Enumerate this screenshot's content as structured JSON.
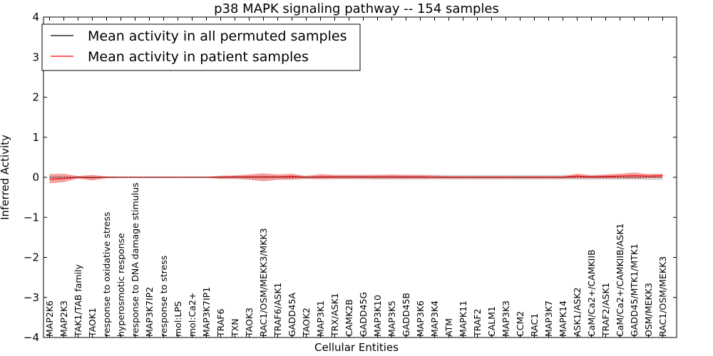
{
  "chart_data": {
    "type": "line",
    "title": "p38 MAPK signaling pathway -- 154 samples",
    "xlabel": "Cellular Entities",
    "ylabel": "Inferred Activity",
    "ylim": [
      -4,
      4
    ],
    "yticks": [
      -4,
      -3,
      -2,
      -1,
      0,
      1,
      2,
      3,
      4
    ],
    "ytick_labels": [
      "−4",
      "−3",
      "−2",
      "−1",
      "0",
      "1",
      "2",
      "3",
      "4"
    ],
    "legend_position": "top-left",
    "grid": false,
    "categories": [
      "MAP2K6",
      "MAP2K3",
      "TAK1/TAB family",
      "TAOK1",
      "response to oxidative stress",
      "hyperosmotic response",
      "response to DNA damage stimulus",
      "MAP3K7IP2",
      "response to stress",
      "mol:LPS",
      "mol:Ca2+",
      "MAP3K7IP1",
      "TRAF6",
      "TXN",
      "TAOK3",
      "RAC1/OSM/MEKK3/MKK3",
      "TRAF6/ASK1",
      "GADD45A",
      "TAOK2",
      "MAP3K1",
      "TRX/ASK1",
      "CAMK2B",
      "GADD45G",
      "MAP3K10",
      "MAP3K5",
      "GADD45B",
      "MAP3K6",
      "MAP3K4",
      "ATM",
      "MAPK11",
      "TRAF2",
      "CALM1",
      "MAP3K3",
      "CCM2",
      "RAC1",
      "MAP3K7",
      "MAPK14",
      "ASK1/ASK2",
      "CaM/Ca2+/CAMKIIB",
      "TRAF2/ASK1",
      "CaM/Ca2+/CAMKIIB/ASK1",
      "GADD45/MTK1/MTK1",
      "OSM/MEKK3",
      "RAC1/OSM/MEKK3"
    ],
    "series": [
      {
        "name": "Mean activity in all permuted samples",
        "color": "#000000",
        "values": [
          0.0,
          0.0,
          0.0,
          0.0,
          0.0,
          0.0,
          0.0,
          0.0,
          0.0,
          0.0,
          0.0,
          0.0,
          0.0,
          0.0,
          0.0,
          0.0,
          0.0,
          0.0,
          0.0,
          0.0,
          0.0,
          0.0,
          0.0,
          0.0,
          0.0,
          0.0,
          0.0,
          0.0,
          0.0,
          0.0,
          0.0,
          0.0,
          0.0,
          0.0,
          0.0,
          0.0,
          0.0,
          0.0,
          0.0,
          0.0,
          0.0,
          0.0,
          0.0,
          0.0
        ],
        "band_lower": [
          -0.02,
          -0.03,
          -0.03,
          -0.03,
          -0.02,
          -0.02,
          -0.02,
          -0.02,
          -0.02,
          -0.02,
          -0.02,
          -0.02,
          -0.03,
          -0.03,
          -0.04,
          -0.05,
          -0.05,
          -0.05,
          -0.05,
          -0.05,
          -0.05,
          -0.05,
          -0.05,
          -0.06,
          -0.06,
          -0.06,
          -0.06,
          -0.06,
          -0.06,
          -0.06,
          -0.06,
          -0.06,
          -0.06,
          -0.06,
          -0.06,
          -0.06,
          -0.06,
          -0.06,
          -0.06,
          -0.06,
          -0.06,
          -0.06,
          -0.07,
          -0.07
        ],
        "band_upper": [
          0.02,
          0.03,
          0.03,
          0.03,
          0.02,
          0.02,
          0.02,
          0.02,
          0.02,
          0.02,
          0.02,
          0.02,
          0.03,
          0.03,
          0.04,
          0.05,
          0.05,
          0.05,
          0.05,
          0.05,
          0.05,
          0.05,
          0.05,
          0.06,
          0.06,
          0.06,
          0.06,
          0.06,
          0.06,
          0.06,
          0.06,
          0.06,
          0.06,
          0.06,
          0.06,
          0.06,
          0.06,
          0.06,
          0.06,
          0.06,
          0.06,
          0.06,
          0.07,
          0.07
        ],
        "band_color": "#cccccc"
      },
      {
        "name": "Mean activity in patient samples",
        "color": "#ff0000",
        "values": [
          -0.05,
          -0.03,
          0.0,
          -0.01,
          0.0,
          0.0,
          0.0,
          0.0,
          0.0,
          0.0,
          0.0,
          0.0,
          0.0,
          0.01,
          0.01,
          0.01,
          0.01,
          0.02,
          0.0,
          0.01,
          0.01,
          0.01,
          0.01,
          0.01,
          0.01,
          0.01,
          0.01,
          0.0,
          0.0,
          0.0,
          0.0,
          0.0,
          0.0,
          0.0,
          0.0,
          0.0,
          0.0,
          0.03,
          0.01,
          0.02,
          0.03,
          0.04,
          0.03,
          0.04
        ],
        "band_lower": [
          -0.15,
          -0.12,
          -0.03,
          -0.08,
          -0.02,
          -0.01,
          -0.01,
          -0.01,
          -0.01,
          -0.01,
          -0.01,
          -0.01,
          -0.04,
          -0.04,
          -0.06,
          -0.1,
          -0.06,
          -0.06,
          -0.03,
          -0.05,
          -0.04,
          -0.04,
          -0.04,
          -0.04,
          -0.04,
          -0.04,
          -0.04,
          -0.03,
          -0.03,
          -0.03,
          -0.03,
          -0.03,
          -0.03,
          -0.03,
          -0.03,
          -0.03,
          -0.03,
          -0.03,
          -0.03,
          -0.03,
          -0.03,
          -0.04,
          -0.02,
          -0.02
        ],
        "band_upper": [
          0.08,
          0.09,
          0.03,
          0.06,
          0.02,
          0.01,
          0.01,
          0.01,
          0.01,
          0.01,
          0.01,
          0.01,
          0.04,
          0.05,
          0.07,
          0.1,
          0.07,
          0.09,
          0.03,
          0.08,
          0.06,
          0.06,
          0.06,
          0.06,
          0.07,
          0.06,
          0.06,
          0.05,
          0.03,
          0.03,
          0.03,
          0.03,
          0.03,
          0.03,
          0.03,
          0.03,
          0.03,
          0.09,
          0.05,
          0.07,
          0.09,
          0.12,
          0.08,
          0.09
        ],
        "band_color": "#f08080"
      }
    ]
  }
}
